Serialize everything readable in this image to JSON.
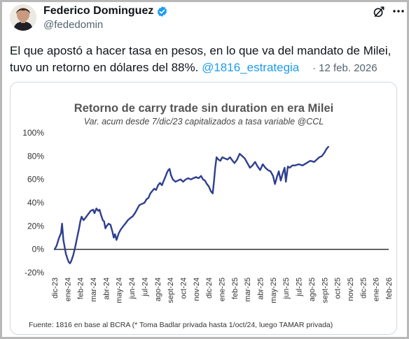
{
  "tweet": {
    "author_name": "Federico Dominguez",
    "author_handle": "@fededomin",
    "text": "El que apostó a hacer tasa en pesos, en lo que va del mandato de Milei, tuvo un retorno en dólares del 88%.",
    "mention": "@1816_estrategia",
    "timestamp": "· 12 feb. 2026",
    "icons": [
      "verified-badge-icon",
      "grok-icon",
      "more-icon"
    ],
    "colors": {
      "link": "#1d9bf0",
      "verified": "#1d9bf0",
      "muted": "#536471"
    }
  },
  "chart_data": {
    "type": "line",
    "title": "Retorno de carry trade sin duration en era Milei",
    "subtitle": "Var. acum desde 7/dic/23 capitalizados a tasa variable @CCL",
    "footnote": "Fuente: 1816 en base al BCRA (* Toma Badlar privada hasta 1/oct/24, luego TAMAR privada)",
    "y_ticks": [
      "100%",
      "80%",
      "60%",
      "40%",
      "20%",
      "0%",
      "-20%"
    ],
    "ylim": [
      -20,
      100
    ],
    "x_ticks": [
      "dic-23",
      "ene-24",
      "feb-24",
      "mar-24",
      "abr-24",
      "may-24",
      "jun-24",
      "jul-24",
      "ago-24",
      "sept-24",
      "oct-24",
      "nov-24",
      "dic-24",
      "ene-25",
      "feb-25",
      "mar-25",
      "abr-25",
      "may-25",
      "jun-25",
      "jul-25",
      "ago-25",
      "sept-25",
      "oct-25",
      "nov-25",
      "dic-25",
      "ene-26",
      "feb-26"
    ],
    "grid": false,
    "zero_line": true,
    "line_color": "#2e3f8f",
    "series": [
      {
        "values": [
          [
            0.0,
            0
          ],
          [
            0.15,
            3
          ],
          [
            0.35,
            10
          ],
          [
            0.5,
            14
          ],
          [
            0.58,
            22
          ],
          [
            0.68,
            8
          ],
          [
            0.78,
            2
          ],
          [
            0.88,
            -4
          ],
          [
            1.0,
            -8
          ],
          [
            1.1,
            -11
          ],
          [
            1.2,
            -12
          ],
          [
            1.3,
            -10
          ],
          [
            1.45,
            -5
          ],
          [
            1.6,
            2
          ],
          [
            1.75,
            10
          ],
          [
            1.9,
            18
          ],
          [
            2.0,
            24
          ],
          [
            2.1,
            28
          ],
          [
            2.25,
            25
          ],
          [
            2.4,
            27
          ],
          [
            2.6,
            30
          ],
          [
            2.8,
            33
          ],
          [
            3.0,
            34
          ],
          [
            3.1,
            31
          ],
          [
            3.25,
            35
          ],
          [
            3.4,
            33
          ],
          [
            3.5,
            34
          ],
          [
            3.6,
            30
          ],
          [
            3.75,
            25
          ],
          [
            3.85,
            24
          ],
          [
            3.95,
            18
          ],
          [
            4.05,
            20
          ],
          [
            4.2,
            22
          ],
          [
            4.35,
            21
          ],
          [
            4.5,
            15
          ],
          [
            4.6,
            10
          ],
          [
            4.7,
            13
          ],
          [
            4.82,
            8
          ],
          [
            5.0,
            14
          ],
          [
            5.15,
            17
          ],
          [
            5.35,
            20
          ],
          [
            5.5,
            22
          ],
          [
            5.7,
            25
          ],
          [
            5.9,
            27
          ],
          [
            6.05,
            28
          ],
          [
            6.25,
            31
          ],
          [
            6.45,
            35
          ],
          [
            6.6,
            38
          ],
          [
            6.8,
            39
          ],
          [
            7.0,
            40
          ],
          [
            7.15,
            43
          ],
          [
            7.3,
            44
          ],
          [
            7.45,
            48
          ],
          [
            7.6,
            50
          ],
          [
            7.75,
            52
          ],
          [
            7.9,
            51
          ],
          [
            8.05,
            55
          ],
          [
            8.2,
            57
          ],
          [
            8.35,
            55
          ],
          [
            8.5,
            59
          ],
          [
            8.65,
            63
          ],
          [
            8.75,
            66
          ],
          [
            8.85,
            68
          ],
          [
            8.95,
            69
          ],
          [
            9.05,
            64
          ],
          [
            9.2,
            60
          ],
          [
            9.4,
            58
          ],
          [
            9.6,
            59
          ],
          [
            9.8,
            60
          ],
          [
            10.0,
            58
          ],
          [
            10.2,
            60
          ],
          [
            10.4,
            61
          ],
          [
            10.6,
            60
          ],
          [
            10.8,
            61
          ],
          [
            11.0,
            62
          ],
          [
            11.2,
            61
          ],
          [
            11.4,
            63
          ],
          [
            11.55,
            60
          ],
          [
            11.7,
            59
          ],
          [
            11.85,
            56
          ],
          [
            12.0,
            54
          ],
          [
            12.15,
            50
          ],
          [
            12.3,
            48
          ],
          [
            12.4,
            58
          ],
          [
            12.5,
            70
          ],
          [
            12.6,
            79
          ],
          [
            12.75,
            77
          ],
          [
            12.9,
            76
          ],
          [
            13.05,
            79
          ],
          [
            13.25,
            78
          ],
          [
            13.45,
            77
          ],
          [
            13.65,
            79
          ],
          [
            13.85,
            76
          ],
          [
            14.0,
            74
          ],
          [
            14.2,
            77
          ],
          [
            14.4,
            82
          ],
          [
            14.6,
            80
          ],
          [
            14.8,
            78
          ],
          [
            15.0,
            74
          ],
          [
            15.2,
            70
          ],
          [
            15.4,
            72
          ],
          [
            15.6,
            75
          ],
          [
            15.8,
            71
          ],
          [
            16.0,
            68
          ],
          [
            16.2,
            73
          ],
          [
            16.4,
            70
          ],
          [
            16.6,
            68
          ],
          [
            16.8,
            67
          ],
          [
            17.0,
            63
          ],
          [
            17.15,
            56
          ],
          [
            17.3,
            62
          ],
          [
            17.45,
            67
          ],
          [
            17.6,
            59
          ],
          [
            17.75,
            65
          ],
          [
            17.9,
            70
          ],
          [
            18.0,
            58
          ],
          [
            18.15,
            71
          ],
          [
            18.3,
            70
          ],
          [
            18.5,
            72
          ],
          [
            18.7,
            72
          ],
          [
            19.0,
            73
          ],
          [
            19.3,
            72
          ],
          [
            19.6,
            74
          ],
          [
            19.9,
            76
          ],
          [
            20.2,
            75
          ],
          [
            20.4,
            77
          ],
          [
            20.6,
            79
          ],
          [
            20.8,
            80
          ],
          [
            21.0,
            83
          ],
          [
            21.15,
            86
          ],
          [
            21.3,
            88
          ]
        ]
      }
    ]
  }
}
